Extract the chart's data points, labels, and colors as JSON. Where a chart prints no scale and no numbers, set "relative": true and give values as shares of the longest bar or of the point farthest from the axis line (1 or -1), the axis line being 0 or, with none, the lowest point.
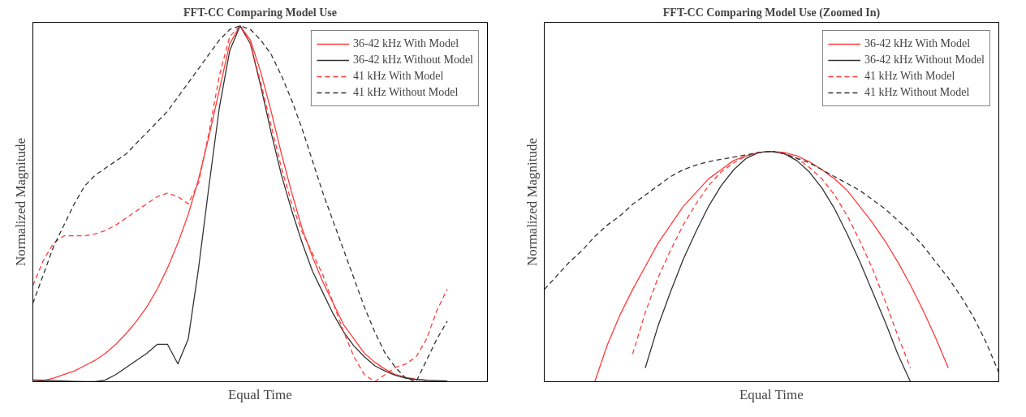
{
  "chart_data": [
    {
      "type": "line",
      "title": "FFT-CC Comparing Model Use",
      "xlabel": "Equal Time",
      "ylabel": "Normalized Magnitude",
      "relative": true,
      "legend": "top right",
      "categories": [
        null,
        null,
        null,
        null,
        null,
        null,
        null,
        null,
        null,
        null,
        null,
        null,
        null,
        null,
        null,
        null,
        null,
        null,
        null,
        null,
        null,
        null,
        null,
        null,
        null,
        null,
        null,
        null,
        null,
        null,
        null,
        null,
        null,
        null,
        null,
        null,
        null,
        null,
        null,
        null,
        null
      ],
      "series": [
        {
          "name": "36-42 kHz With Model",
          "color": "#ff3b3b",
          "line_style": "solid",
          "values": [
            0,
            0.003,
            0.01,
            0.02,
            0.03,
            0.045,
            0.06,
            0.08,
            0.105,
            0.135,
            0.17,
            0.21,
            0.26,
            0.32,
            0.39,
            0.47,
            0.57,
            0.69,
            0.82,
            0.95,
            1.0,
            0.96,
            0.87,
            0.76,
            0.64,
            0.53,
            0.43,
            0.35,
            0.28,
            0.22,
            0.16,
            0.12,
            0.08,
            0.055,
            0.035,
            0.02,
            0.012,
            0.007,
            0.004,
            null,
            null
          ]
        },
        {
          "name": "36-42 kHz Without Model",
          "color": "#333333",
          "line_style": "solid",
          "values": [
            0.005,
            0.004,
            0.003,
            0.002,
            0.001,
            0,
            0,
            0.005,
            0.02,
            0.04,
            0.06,
            0.08,
            0.105,
            0.105,
            0.05,
            0.12,
            0.32,
            0.55,
            0.77,
            0.93,
            1.0,
            0.95,
            0.83,
            0.7,
            0.58,
            0.48,
            0.39,
            0.31,
            0.25,
            0.19,
            0.14,
            0.1,
            0.07,
            0.045,
            0.03,
            0.018,
            0.01,
            0.006,
            0.004,
            0.003,
            0.002
          ]
        },
        {
          "name": "41 kHz With Model",
          "color": "#ff3b3b",
          "line_style": "dashed",
          "values": [
            0.27,
            0.34,
            0.39,
            0.41,
            0.41,
            0.41,
            0.415,
            0.425,
            0.44,
            0.46,
            0.48,
            0.5,
            0.52,
            0.53,
            0.52,
            0.5,
            0.56,
            0.7,
            0.86,
            0.97,
            1.0,
            0.95,
            0.84,
            0.72,
            0.6,
            0.5,
            0.42,
            0.36,
            0.3,
            0.22,
            0.14,
            0.07,
            0.02,
            0,
            0.02,
            0.04,
            0.05,
            0.07,
            0.12,
            0.2,
            0.26
          ]
        },
        {
          "name": "41 kHz Without Model",
          "color": "#333333",
          "line_style": "dashed",
          "values": [
            0.22,
            0.3,
            0.38,
            0.44,
            0.5,
            0.55,
            0.58,
            0.6,
            0.62,
            0.64,
            0.67,
            0.7,
            0.73,
            0.76,
            0.8,
            0.84,
            0.88,
            0.92,
            0.96,
            0.99,
            1.0,
            0.99,
            0.96,
            0.92,
            0.86,
            0.79,
            0.71,
            0.62,
            0.53,
            0.45,
            0.37,
            0.29,
            0.21,
            0.14,
            0.08,
            0.04,
            0.01,
            0,
            0.06,
            0.12,
            0.17
          ]
        }
      ]
    },
    {
      "type": "line",
      "title": "FFT-CC Comparing Model Use (Zoomed In)",
      "xlabel": "Equal Time",
      "ylabel": "Normalized Magnitude",
      "relative": true,
      "legend": "top right",
      "categories": [
        null,
        null,
        null,
        null,
        null,
        null,
        null,
        null,
        null,
        null,
        null,
        null,
        null,
        null,
        null,
        null,
        null,
        null,
        null,
        null,
        null,
        null,
        null,
        null,
        null,
        null,
        null,
        null,
        null,
        null,
        null,
        null,
        null,
        null,
        null,
        null,
        null
      ],
      "series": [
        {
          "name": "36-42 kHz With Model",
          "color": "#ff3b3b",
          "line_style": "solid",
          "values": [
            null,
            null,
            null,
            null,
            0,
            0.16,
            0.29,
            0.4,
            0.5,
            0.6,
            0.68,
            0.76,
            0.82,
            0.88,
            0.92,
            0.96,
            0.98,
            0.995,
            1,
            0.995,
            0.98,
            0.955,
            0.92,
            0.88,
            0.83,
            0.76,
            0.69,
            0.61,
            0.52,
            0.42,
            0.31,
            0.19,
            0.06,
            null,
            null,
            null,
            null
          ]
        },
        {
          "name": "36-42 kHz Without Model",
          "color": "#333333",
          "line_style": "solid",
          "values": [
            null,
            null,
            null,
            null,
            null,
            null,
            null,
            null,
            0.06,
            0.24,
            0.39,
            0.53,
            0.65,
            0.76,
            0.85,
            0.92,
            0.97,
            0.995,
            1,
            0.99,
            0.96,
            0.91,
            0.84,
            0.75,
            0.64,
            0.52,
            0.39,
            0.26,
            0.12,
            0,
            null,
            null,
            null,
            null,
            null,
            null,
            null
          ]
        },
        {
          "name": "41 kHz With Model",
          "color": "#ff3b3b",
          "line_style": "dashed",
          "values": [
            null,
            null,
            null,
            null,
            null,
            null,
            null,
            0.12,
            0.3,
            0.45,
            0.57,
            0.68,
            0.77,
            0.85,
            0.91,
            0.95,
            0.98,
            0.995,
            1,
            0.99,
            0.97,
            0.93,
            0.88,
            0.81,
            0.72,
            0.61,
            0.49,
            0.35,
            0.2,
            0.06,
            null,
            null,
            null,
            null,
            null,
            null,
            null
          ]
        },
        {
          "name": "41 kHz Without Model",
          "color": "#333333",
          "line_style": "dashed",
          "values": [
            0.4,
            0.46,
            0.52,
            0.57,
            0.63,
            0.68,
            0.72,
            0.77,
            0.81,
            0.85,
            0.89,
            0.92,
            0.94,
            0.955,
            0.965,
            0.975,
            0.985,
            0.995,
            1,
            0.99,
            0.97,
            0.95,
            0.92,
            0.89,
            0.86,
            0.83,
            0.79,
            0.75,
            0.7,
            0.65,
            0.59,
            0.52,
            0.45,
            0.37,
            0.28,
            0.17,
            0.04
          ]
        }
      ]
    }
  ]
}
